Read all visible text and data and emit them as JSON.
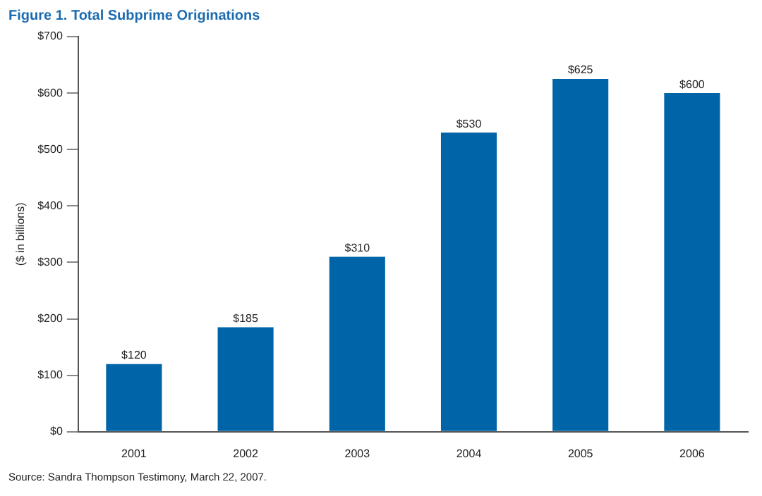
{
  "chart_data": {
    "type": "bar",
    "title": "Figure 1. Total Subprime Originations",
    "ylabel": "($ in billions)",
    "categories": [
      "2001",
      "2002",
      "2003",
      "2004",
      "2005",
      "2006"
    ],
    "values": [
      120,
      185,
      310,
      530,
      625,
      600
    ],
    "value_labels": [
      "$120",
      "$185",
      "$310",
      "$530",
      "$625",
      "$600"
    ],
    "color": "#0064a8",
    "ylim": [
      0,
      700
    ],
    "yticks": [
      {
        "value": 0,
        "label": "$0"
      },
      {
        "value": 100,
        "label": "$100"
      },
      {
        "value": 200,
        "label": "$200"
      },
      {
        "value": 300,
        "label": "$300"
      },
      {
        "value": 400,
        "label": "$400"
      },
      {
        "value": 500,
        "label": "$500"
      },
      {
        "value": 600,
        "label": "$600"
      },
      {
        "value": 700,
        "label": "$700"
      }
    ],
    "grid": false,
    "legend": false,
    "annotations": [
      "Source: Sandra Thompson Testimony, March 22, 2007."
    ]
  }
}
